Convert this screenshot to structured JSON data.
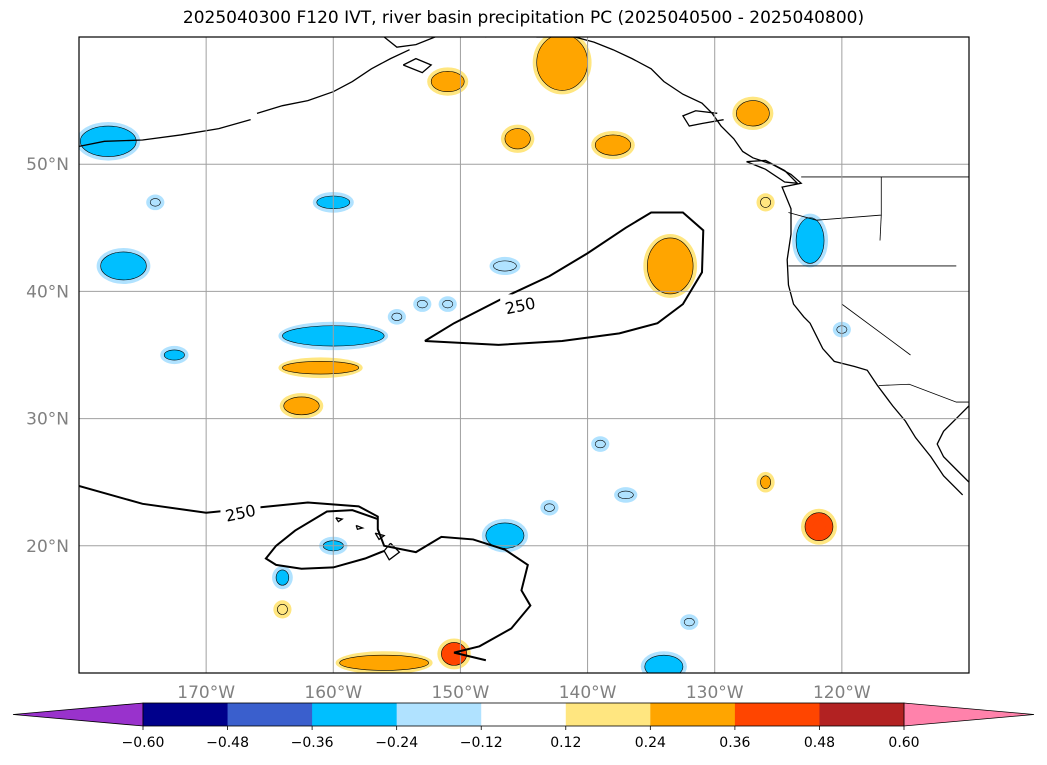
{
  "chart_data": {
    "type": "map-contour",
    "title": "2025040300 F120 IVT, river basin precipitation PC (2025040500 - 2025040800)",
    "xlim": [
      -180,
      -110
    ],
    "ylim": [
      10,
      60
    ],
    "grid": true,
    "x_ticks": [
      {
        "value": -170,
        "label": "170°W"
      },
      {
        "value": -160,
        "label": "160°W"
      },
      {
        "value": -150,
        "label": "150°W"
      },
      {
        "value": -140,
        "label": "140°W"
      },
      {
        "value": -130,
        "label": "130°W"
      },
      {
        "value": -120,
        "label": "120°W"
      }
    ],
    "y_ticks": [
      {
        "value": 20,
        "label": "20°N"
      },
      {
        "value": 30,
        "label": "30°N"
      },
      {
        "value": 40,
        "label": "40°N"
      },
      {
        "value": 50,
        "label": "50°N"
      }
    ],
    "colorbar": {
      "extend": "both",
      "levels": [
        -0.6,
        -0.48,
        -0.36,
        -0.24,
        -0.12,
        0.12,
        0.24,
        0.36,
        0.48,
        0.6
      ],
      "tick_labels": [
        "−0.60",
        "−0.48",
        "−0.36",
        "−0.24",
        "−0.12",
        "0.12",
        "0.24",
        "0.36",
        "0.48",
        "0.60"
      ],
      "colors": [
        "#9932cc",
        "#00008b",
        "#3a5fcd",
        "#00bfff",
        "#b0e2ff",
        "#ffffff",
        "#ffe680",
        "#ffa500",
        "#ff4500",
        "#b22222",
        "#ff82ab"
      ]
    },
    "ivt_contours": [
      {
        "level": 250,
        "label": "250",
        "points": [
          [
            -152.8,
            36.1
          ],
          [
            -150.5,
            37.5
          ],
          [
            -146,
            39.8
          ],
          [
            -143,
            41.2
          ],
          [
            -140,
            43
          ],
          [
            -137,
            45
          ],
          [
            -135,
            46.2
          ],
          [
            -132.5,
            46.2
          ],
          [
            -130.9,
            44.8
          ],
          [
            -131,
            41.5
          ],
          [
            -132.5,
            39
          ],
          [
            -134.5,
            37.5
          ],
          [
            -137.5,
            36.7
          ],
          [
            -142,
            36.1
          ],
          [
            -147,
            35.8
          ],
          [
            -152.8,
            36.1
          ]
        ],
        "label_at": [
          -145.3,
          38.9
        ]
      },
      {
        "level": 250,
        "label": "250",
        "points": [
          [
            -180,
            24.7
          ],
          [
            -175,
            23.3
          ],
          [
            -170,
            22.6
          ],
          [
            -166,
            23
          ],
          [
            -162,
            23.4
          ],
          [
            -158,
            23.1
          ],
          [
            -156.5,
            22.3
          ],
          [
            -156.5,
            21.3
          ],
          [
            -156,
            20
          ],
          [
            -153.5,
            19.5
          ],
          [
            -151.5,
            20.7
          ],
          [
            -149,
            20.5
          ],
          [
            -146.5,
            19.7
          ],
          [
            -144.7,
            18.5
          ],
          [
            -145.2,
            16.5
          ],
          [
            -144.5,
            15.3
          ],
          [
            -146,
            13.5
          ],
          [
            -148.5,
            12.1
          ],
          [
            -150.5,
            11.6
          ],
          [
            -148,
            11
          ]
        ],
        "label_at": [
          -167.3,
          22.6
        ]
      },
      {
        "level": 250,
        "label": "",
        "points": [
          [
            -156,
            19.6
          ],
          [
            -157.5,
            19
          ],
          [
            -160,
            18.3
          ],
          [
            -162.5,
            18.2
          ],
          [
            -164.5,
            18.5
          ],
          [
            -165.3,
            19
          ],
          [
            -164.5,
            20
          ],
          [
            -163,
            21.2
          ],
          [
            -160.5,
            22.7
          ],
          [
            -158.5,
            22.8
          ],
          [
            -156.5,
            22.1
          ]
        ]
      }
    ],
    "precip_patches": [
      {
        "lon": -177.7,
        "lat": 51.8,
        "rx": 2.2,
        "ry": 1.2,
        "value": -0.3
      },
      {
        "lon": -176.5,
        "lat": 42.0,
        "rx": 1.8,
        "ry": 1.1,
        "value": -0.3
      },
      {
        "lon": -174.0,
        "lat": 47.0,
        "rx": 0.4,
        "ry": 0.3,
        "value": -0.2
      },
      {
        "lon": -172.5,
        "lat": 35.0,
        "rx": 0.8,
        "ry": 0.4,
        "value": -0.3
      },
      {
        "lon": -160.0,
        "lat": 47.0,
        "rx": 1.3,
        "ry": 0.5,
        "value": -0.3
      },
      {
        "lon": -160.0,
        "lat": 36.5,
        "rx": 4.0,
        "ry": 0.8,
        "value": -0.3
      },
      {
        "lon": -161.0,
        "lat": 34.0,
        "rx": 3.0,
        "ry": 0.5,
        "value": 0.3
      },
      {
        "lon": -162.5,
        "lat": 31.0,
        "rx": 1.4,
        "ry": 0.7,
        "value": 0.3
      },
      {
        "lon": -160.0,
        "lat": 20.0,
        "rx": 0.8,
        "ry": 0.4,
        "value": -0.3
      },
      {
        "lon": -164.0,
        "lat": 17.5,
        "rx": 0.5,
        "ry": 0.6,
        "value": -0.3
      },
      {
        "lon": -164.0,
        "lat": 15.0,
        "rx": 0.4,
        "ry": 0.4,
        "value": 0.2
      },
      {
        "lon": -155.0,
        "lat": 38.0,
        "rx": 0.4,
        "ry": 0.3,
        "value": -0.2
      },
      {
        "lon": -153.0,
        "lat": 39.0,
        "rx": 0.4,
        "ry": 0.3,
        "value": -0.2
      },
      {
        "lon": -151.0,
        "lat": 39.0,
        "rx": 0.4,
        "ry": 0.3,
        "value": -0.2
      },
      {
        "lon": -146.5,
        "lat": 42.0,
        "rx": 0.9,
        "ry": 0.4,
        "value": -0.2
      },
      {
        "lon": -151.0,
        "lat": 56.5,
        "rx": 1.3,
        "ry": 0.8,
        "value": 0.3
      },
      {
        "lon": -145.5,
        "lat": 52.0,
        "rx": 1.0,
        "ry": 0.8,
        "value": 0.3
      },
      {
        "lon": -142.0,
        "lat": 58.0,
        "rx": 2.0,
        "ry": 2.2,
        "value": 0.3
      },
      {
        "lon": -138.0,
        "lat": 51.5,
        "rx": 1.4,
        "ry": 0.8,
        "value": 0.3
      },
      {
        "lon": -133.5,
        "lat": 42.0,
        "rx": 1.8,
        "ry": 2.2,
        "value": 0.33
      },
      {
        "lon": -127.0,
        "lat": 54.0,
        "rx": 1.3,
        "ry": 1.0,
        "value": 0.3
      },
      {
        "lon": -126.0,
        "lat": 47.0,
        "rx": 0.4,
        "ry": 0.4,
        "value": 0.2
      },
      {
        "lon": -122.5,
        "lat": 44.0,
        "rx": 1.1,
        "ry": 1.8,
        "value": -0.3
      },
      {
        "lon": -120.0,
        "lat": 37.0,
        "rx": 0.4,
        "ry": 0.3,
        "value": -0.2
      },
      {
        "lon": -146.5,
        "lat": 20.8,
        "rx": 1.5,
        "ry": 1.0,
        "value": -0.3
      },
      {
        "lon": -143.0,
        "lat": 23.0,
        "rx": 0.4,
        "ry": 0.3,
        "value": -0.2
      },
      {
        "lon": -139.0,
        "lat": 28.0,
        "rx": 0.4,
        "ry": 0.3,
        "value": -0.2
      },
      {
        "lon": -137.0,
        "lat": 24.0,
        "rx": 0.6,
        "ry": 0.3,
        "value": -0.2
      },
      {
        "lon": -126.0,
        "lat": 25.0,
        "rx": 0.4,
        "ry": 0.5,
        "value": 0.3
      },
      {
        "lon": -121.8,
        "lat": 21.5,
        "rx": 1.1,
        "ry": 1.1,
        "value": 0.4
      },
      {
        "lon": -132.0,
        "lat": 14.0,
        "rx": 0.4,
        "ry": 0.3,
        "value": -0.15
      },
      {
        "lon": -134.0,
        "lat": 10.5,
        "rx": 1.5,
        "ry": 0.9,
        "value": -0.3
      },
      {
        "lon": -150.5,
        "lat": 11.5,
        "rx": 1.0,
        "ry": 0.9,
        "value": 0.4
      },
      {
        "lon": -156.0,
        "lat": 10.8,
        "rx": 3.5,
        "ry": 0.6,
        "value": 0.3
      }
    ]
  }
}
